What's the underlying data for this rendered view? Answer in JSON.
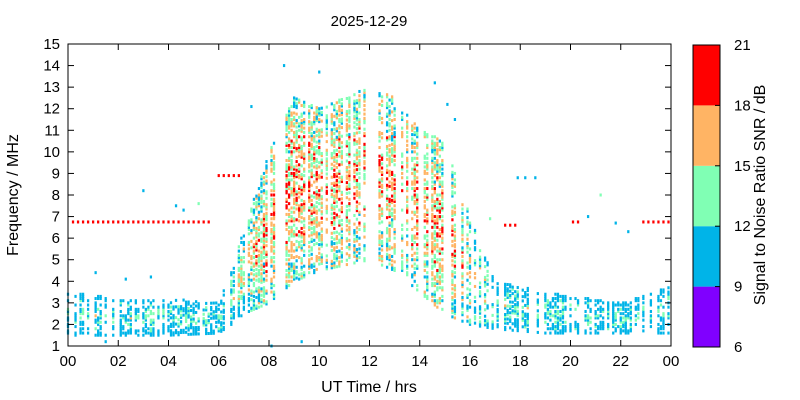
{
  "chart_data": {
    "type": "heatmap",
    "title": "2025-12-29",
    "xlabel": "UT Time / hrs",
    "ylabel": "Frequency / MHz",
    "colorbar_label": "Signal to Noise Ratio SNR / dB",
    "xlim": [
      0,
      24
    ],
    "ylim": [
      1,
      15
    ],
    "x_ticks": [
      "00",
      "02",
      "04",
      "06",
      "08",
      "10",
      "12",
      "14",
      "16",
      "18",
      "20",
      "22",
      "00"
    ],
    "y_ticks": [
      "1",
      "2",
      "3",
      "4",
      "5",
      "6",
      "7",
      "8",
      "9",
      "10",
      "11",
      "12",
      "13",
      "14",
      "15"
    ],
    "colorbar": {
      "range": [
        6,
        21
      ],
      "ticks": [
        "6",
        "9",
        "12",
        "15",
        "18",
        "21"
      ],
      "bands": [
        {
          "from": 6,
          "to": 9,
          "color": "#8000ff"
        },
        {
          "from": 9,
          "to": 12,
          "color": "#00b4e8"
        },
        {
          "from": 12,
          "to": 15,
          "color": "#80ffb4"
        },
        {
          "from": 15,
          "to": 18,
          "color": "#ffb464"
        },
        {
          "from": 18,
          "to": 21,
          "color": "#ff0000"
        }
      ]
    },
    "sampling": {
      "time_step_hrs": 0.1,
      "freq_step_mhz": 0.1
    },
    "profile": [
      {
        "t": 0,
        "lo": 1.5,
        "hi": 3.5,
        "snr": 10.5
      },
      {
        "t": 2,
        "lo": 1.5,
        "hi": 3.2,
        "snr": 11
      },
      {
        "t": 4,
        "lo": 1.5,
        "hi": 3.2,
        "snr": 11
      },
      {
        "t": 6,
        "lo": 1.6,
        "hi": 3.0,
        "snr": 11
      },
      {
        "t": 6.5,
        "lo": 2.0,
        "hi": 4.5,
        "snr": 12
      },
      {
        "t": 7,
        "lo": 2.5,
        "hi": 6.5,
        "snr": 14
      },
      {
        "t": 8,
        "lo": 3.0,
        "hi": 10.0,
        "snr": 16
      },
      {
        "t": 9,
        "lo": 4.0,
        "hi": 12.5,
        "snr": 16.5
      },
      {
        "t": 10,
        "lo": 4.5,
        "hi": 12.0,
        "snr": 16
      },
      {
        "t": 12,
        "lo": 5.0,
        "hi": 13.0,
        "snr": 16
      },
      {
        "t": 13,
        "lo": 4.5,
        "hi": 12.5,
        "snr": 16
      },
      {
        "t": 14,
        "lo": 3.5,
        "hi": 11.0,
        "snr": 16
      },
      {
        "t": 15,
        "lo": 2.5,
        "hi": 10.5,
        "snr": 16
      },
      {
        "t": 16,
        "lo": 2.0,
        "hi": 7.0,
        "snr": 14
      },
      {
        "t": 17,
        "lo": 1.8,
        "hi": 4.0,
        "snr": 11.5
      },
      {
        "t": 19,
        "lo": 1.6,
        "hi": 3.5,
        "snr": 11
      },
      {
        "t": 22,
        "lo": 1.6,
        "hi": 3.0,
        "snr": 11
      },
      {
        "t": 24,
        "lo": 1.6,
        "hi": 3.8,
        "snr": 11
      }
    ],
    "line_segments": [
      {
        "t0": 0.2,
        "t1": 5.6,
        "freq": 6.75,
        "snr": 19.5
      },
      {
        "t0": 6.0,
        "t1": 6.9,
        "freq": 8.9,
        "snr": 19.5
      },
      {
        "t0": 17.4,
        "t1": 17.9,
        "freq": 6.6,
        "snr": 19.5
      },
      {
        "t0": 20.1,
        "t1": 20.4,
        "freq": 6.75,
        "snr": 19.5
      },
      {
        "t0": 22.9,
        "t1": 23.9,
        "freq": 6.75,
        "snr": 19.5
      }
    ],
    "outliers": [
      {
        "t": 3.0,
        "freq": 8.2,
        "snr": 11
      },
      {
        "t": 4.3,
        "freq": 7.5,
        "snr": 11
      },
      {
        "t": 4.6,
        "freq": 7.3,
        "snr": 11
      },
      {
        "t": 5.2,
        "freq": 7.6,
        "snr": 14
      },
      {
        "t": 7.3,
        "freq": 12.1,
        "snr": 11
      },
      {
        "t": 8.6,
        "freq": 14.0,
        "snr": 11
      },
      {
        "t": 10.0,
        "freq": 13.7,
        "snr": 11
      },
      {
        "t": 14.6,
        "freq": 13.2,
        "snr": 11
      },
      {
        "t": 15.1,
        "freq": 12.2,
        "snr": 11
      },
      {
        "t": 15.4,
        "freq": 11.5,
        "snr": 11
      },
      {
        "t": 16.8,
        "freq": 6.9,
        "snr": 13
      },
      {
        "t": 18.2,
        "freq": 8.8,
        "snr": 11
      },
      {
        "t": 18.6,
        "freq": 8.8,
        "snr": 11
      },
      {
        "t": 17.9,
        "freq": 8.8,
        "snr": 11
      },
      {
        "t": 20.7,
        "freq": 7.0,
        "snr": 11
      },
      {
        "t": 21.2,
        "freq": 8.0,
        "snr": 13
      },
      {
        "t": 21.8,
        "freq": 6.7,
        "snr": 11
      },
      {
        "t": 22.3,
        "freq": 6.3,
        "snr": 11
      },
      {
        "t": 8.1,
        "freq": 1.0,
        "snr": 11
      },
      {
        "t": 9.3,
        "freq": 1.2,
        "snr": 11
      },
      {
        "t": 1.5,
        "freq": 1.2,
        "snr": 11
      },
      {
        "t": 2.3,
        "freq": 4.1,
        "snr": 11
      },
      {
        "t": 1.1,
        "freq": 4.4,
        "snr": 11
      },
      {
        "t": 3.3,
        "freq": 4.2,
        "snr": 11
      }
    ]
  }
}
